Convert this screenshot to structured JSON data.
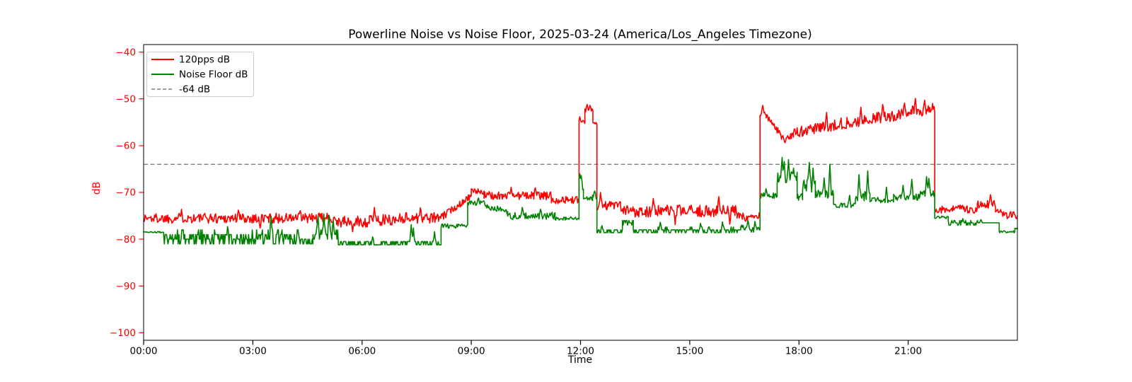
{
  "chart_data": {
    "type": "line",
    "title": "Powerline Noise vs Noise Floor, 2025-03-24 (America/Los_Angeles Timezone)",
    "xlabel": "Time",
    "ylabel": "dB",
    "grid": false,
    "background": "#ffffff",
    "x_axis": {
      "range_hours": [
        0,
        24
      ],
      "tick_hours": [
        0,
        3,
        6,
        9,
        12,
        15,
        18,
        21
      ],
      "tick_labels": [
        "00:00",
        "03:00",
        "06:00",
        "09:00",
        "12:00",
        "15:00",
        "18:00",
        "21:00"
      ],
      "tick_color": "#000000"
    },
    "y_axis": {
      "range": [
        -101.6,
        -38.4
      ],
      "tick_values": [
        -40,
        -50,
        -60,
        -70,
        -80,
        -90,
        -100
      ],
      "tick_labels": [
        "−40",
        "−50",
        "−60",
        "−70",
        "−80",
        "−90",
        "−100"
      ],
      "tick_color": "#ff0000"
    },
    "threshold": {
      "label": "-64 dB",
      "value": -64,
      "color": "#7f7f7f",
      "style": "dashed"
    },
    "legend": {
      "position": "upper-left",
      "entries": [
        {
          "label": "120pps dB",
          "color": "#ff0000",
          "style": "solid"
        },
        {
          "label": "Noise Floor dB",
          "color": "#008000",
          "style": "solid"
        },
        {
          "label": "-64 dB",
          "color": "#7f7f7f",
          "style": "dashed"
        }
      ]
    },
    "series": [
      {
        "name": "120pps dB",
        "color": "#ff0000",
        "sample_minutes": 1.2,
        "segments": [
          {
            "t0": 0,
            "t1": 5.3,
            "v0": -75.5,
            "n": 1.1,
            "spikes": [
              [
                1.05,
                -73.6
              ],
              [
                2.6,
                -73.8
              ],
              [
                3.2,
                -77.6
              ],
              [
                4.3,
                -73.9
              ]
            ]
          },
          {
            "t0": 5.3,
            "t1": 6.2,
            "v0": -76.3,
            "n": 1.2,
            "spikes": [
              [
                5.75,
                -78.4
              ]
            ]
          },
          {
            "t0": 6.2,
            "t1": 7.0,
            "v0": -75.9,
            "n": 1.2,
            "spikes": [
              [
                6.35,
                -73.2
              ]
            ]
          },
          {
            "t0": 7.0,
            "t1": 8.1,
            "v0": -75.4,
            "n": 1.2,
            "spikes": [
              [
                7.6,
                -73.3
              ]
            ]
          },
          {
            "t0": 8.1,
            "t1": 9.0,
            "v0": -75.8,
            "v1": -70.6,
            "n": 0.8
          },
          {
            "t0": 9.0,
            "t1": 9.35,
            "v0": -69.8,
            "n": 0.6
          },
          {
            "t0": 9.35,
            "t1": 11.2,
            "v0": -70.7,
            "n": 0.9,
            "spikes": [
              [
                10.1,
                -68.9
              ],
              [
                10.75,
                -69.0
              ]
            ]
          },
          {
            "t0": 11.2,
            "t1": 11.96,
            "v0": -71.6,
            "n": 0.8
          },
          {
            "t0": 11.96,
            "t1": 12.12,
            "v0": -55.0,
            "n": 0.4,
            "spikes": [
              [
                11.99,
                -53.8
              ]
            ]
          },
          {
            "t0": 12.12,
            "t1": 12.34,
            "v0": -52.3,
            "n": 0.5,
            "spikes": [
              [
                12.18,
                -51.2
              ],
              [
                12.27,
                -51.4
              ]
            ]
          },
          {
            "t0": 12.34,
            "t1": 12.45,
            "v0": -55.2,
            "n": 0.3
          },
          {
            "t0": 12.45,
            "t1": 13.1,
            "v0": -72.8,
            "n": 1.0,
            "spikes": [
              [
                12.55,
                -70.0
              ]
            ]
          },
          {
            "t0": 13.1,
            "t1": 16.3,
            "v0": -74.0,
            "n": 1.3,
            "spikes": [
              [
                14.0,
                -71.3
              ],
              [
                14.6,
                -76.9
              ],
              [
                15.8,
                -70.9
              ],
              [
                16.1,
                -76.8
              ]
            ]
          },
          {
            "t0": 16.3,
            "t1": 16.93,
            "v0": -75.2,
            "n": 1.0
          },
          {
            "t0": 16.93,
            "t1": 17.1,
            "v0": -53.2,
            "n": 0.5,
            "spikes": [
              [
                17.0,
                -51.4
              ]
            ]
          },
          {
            "t0": 17.1,
            "t1": 17.5,
            "v0": -53.8,
            "v1": -57.6,
            "n": 0.7
          },
          {
            "t0": 17.5,
            "t1": 17.85,
            "v0": -58.0,
            "n": 0.7,
            "spikes": [
              [
                17.62,
                -59.4
              ]
            ]
          },
          {
            "t0": 17.85,
            "t1": 19.0,
            "v0": -57.2,
            "v1": -55.6,
            "n": 1.2,
            "spikes": [
              [
                18.75,
                -52.9
              ]
            ]
          },
          {
            "t0": 19.0,
            "t1": 20.0,
            "v0": -55.4,
            "v1": -54.6,
            "n": 1.2,
            "spikes": [
              [
                19.7,
                -51.8
              ]
            ]
          },
          {
            "t0": 20.0,
            "t1": 21.0,
            "v0": -54.2,
            "v1": -53.2,
            "n": 1.2,
            "spikes": [
              [
                20.3,
                -51.2
              ],
              [
                20.9,
                -50.9
              ]
            ]
          },
          {
            "t0": 21.0,
            "t1": 21.73,
            "v0": -52.6,
            "n": 1.1,
            "spikes": [
              [
                21.2,
                -49.9
              ],
              [
                21.45,
                -50.3
              ],
              [
                21.68,
                -51.0
              ]
            ]
          },
          {
            "t0": 21.73,
            "t1": 22.9,
            "v0": -73.6,
            "n": 0.9
          },
          {
            "t0": 22.9,
            "t1": 23.4,
            "v0": -72.6,
            "n": 0.9,
            "spikes": [
              [
                23.25,
                -70.5
              ]
            ]
          },
          {
            "t0": 23.4,
            "t1": 24,
            "v0": -74.3,
            "v1": -75.2,
            "n": 0.9
          }
        ]
      },
      {
        "name": "Noise Floor dB",
        "color": "#008000",
        "sample_minutes": 1.2,
        "segments": [
          {
            "t0": 0,
            "t1": 0.55,
            "v0": -78.5,
            "n": 0.15
          },
          {
            "t0": 0.55,
            "t1": 4.3,
            "v0": -79.7,
            "n": 1.6,
            "q": 1,
            "spikes": [
              [
                2.3,
                -77.3
              ],
              [
                3.5,
                -75.1
              ]
            ]
          },
          {
            "t0": 4.3,
            "t1": 4.65,
            "v0": -80.6,
            "n": 0.5,
            "q": 1
          },
          {
            "t0": 4.65,
            "t1": 5.35,
            "v0": -79.2,
            "n": 1.6,
            "q": 1,
            "spikes": [
              [
                4.8,
                -75.1
              ],
              [
                4.95,
                -74.6
              ],
              [
                5.1,
                -74.9
              ],
              [
                5.22,
                -76.1
              ]
            ]
          },
          {
            "t0": 5.35,
            "t1": 8.17,
            "v0": -80.9,
            "n": 0.35,
            "q": 0.7,
            "spikes": [
              [
                6.3,
                -79.5
              ],
              [
                7.35,
                -76.9
              ],
              [
                7.42,
                -77.6
              ],
              [
                8.0,
                -78.4
              ]
            ]
          },
          {
            "t0": 8.17,
            "t1": 8.9,
            "v0": -77.2,
            "n": 0.5
          },
          {
            "t0": 8.9,
            "t1": 9.4,
            "v0": -72.3,
            "n": 0.6,
            "spikes": [
              [
                9.2,
                -71.2
              ]
            ]
          },
          {
            "t0": 9.4,
            "t1": 10.0,
            "v0": -72.8,
            "v1": -74.2,
            "n": 0.7
          },
          {
            "t0": 10.0,
            "t1": 11.3,
            "v0": -75.0,
            "n": 0.8,
            "spikes": [
              [
                10.4,
                -73.2
              ],
              [
                10.9,
                -73.6
              ]
            ]
          },
          {
            "t0": 11.3,
            "t1": 11.96,
            "v0": -75.6,
            "n": 0.35
          },
          {
            "t0": 11.96,
            "t1": 12.08,
            "v0": -69.0,
            "n": 0.5,
            "spikes": [
              [
                11.99,
                -66.0
              ],
              [
                12.02,
                -66.4
              ]
            ]
          },
          {
            "t0": 12.08,
            "t1": 12.33,
            "v0": -71.4,
            "n": 0.5
          },
          {
            "t0": 12.33,
            "t1": 12.45,
            "v0": -71.0,
            "n": 0.5,
            "spikes": [
              [
                12.38,
                -69.7
              ]
            ]
          },
          {
            "t0": 12.45,
            "t1": 13.15,
            "v0": -78.4,
            "n": 0.4,
            "q": 0.6,
            "spikes": [
              [
                12.6,
                -77.1
              ]
            ]
          },
          {
            "t0": 13.15,
            "t1": 13.45,
            "v0": -76.4,
            "n": 0.5,
            "q": 0.5
          },
          {
            "t0": 13.45,
            "t1": 16.4,
            "v0": -78.1,
            "n": 0.5,
            "q": 0.6,
            "spikes": [
              [
                14.2,
                -76.4
              ],
              [
                15.3,
                -76.6
              ],
              [
                15.9,
                -76.3
              ]
            ]
          },
          {
            "t0": 16.4,
            "t1": 16.93,
            "v0": -77.8,
            "n": 0.6,
            "q": 0.5,
            "spikes": [
              [
                16.6,
                -76.0
              ],
              [
                16.8,
                -76.2
              ]
            ]
          },
          {
            "t0": 16.93,
            "t1": 17.4,
            "v0": -70.7,
            "n": 0.6,
            "spikes": [
              [
                17.1,
                -69.2
              ]
            ]
          },
          {
            "t0": 17.4,
            "t1": 17.95,
            "v0": -66.9,
            "n": 1.6,
            "spikes": [
              [
                17.53,
                -62.5
              ],
              [
                17.6,
                -63.4
              ],
              [
                17.72,
                -63.0
              ],
              [
                17.85,
                -64.8
              ]
            ]
          },
          {
            "t0": 17.95,
            "t1": 18.1,
            "v0": -71.0,
            "n": 1.0
          },
          {
            "t0": 18.1,
            "t1": 18.45,
            "v0": -68.6,
            "n": 1.8,
            "spikes": [
              [
                18.29,
                -63.6
              ],
              [
                18.38,
                -64.8
              ]
            ]
          },
          {
            "t0": 18.45,
            "t1": 18.95,
            "v0": -70.5,
            "n": 1.0,
            "spikes": [
              [
                18.7,
                -66.9
              ],
              [
                18.86,
                -64.0
              ]
            ]
          },
          {
            "t0": 18.95,
            "t1": 19.55,
            "v0": -72.8,
            "n": 0.5,
            "spikes": [
              [
                19.4,
                -70.6
              ]
            ]
          },
          {
            "t0": 19.55,
            "t1": 19.95,
            "v0": -70.8,
            "n": 1.0,
            "spikes": [
              [
                19.65,
                -66.2
              ],
              [
                19.9,
                -65.4
              ]
            ]
          },
          {
            "t0": 19.95,
            "t1": 20.6,
            "v0": -71.6,
            "n": 0.6,
            "spikes": [
              [
                20.4,
                -68.9
              ]
            ]
          },
          {
            "t0": 20.6,
            "t1": 21.3,
            "v0": -71.0,
            "n": 0.7,
            "spikes": [
              [
                20.85,
                -68.5
              ],
              [
                21.1,
                -67.2
              ]
            ]
          },
          {
            "t0": 21.3,
            "t1": 21.73,
            "v0": -70.4,
            "n": 0.8,
            "spikes": [
              [
                21.5,
                -66.6
              ],
              [
                21.56,
                -67.0
              ]
            ]
          },
          {
            "t0": 21.73,
            "t1": 22.1,
            "v0": -75.3,
            "n": 0.3
          },
          {
            "t0": 22.1,
            "t1": 23.5,
            "v0": -76.5,
            "n": 0.35,
            "q": 0.5,
            "spikes": [
              [
                22.5,
                -75.6
              ],
              [
                23.0,
                -75.8
              ]
            ]
          },
          {
            "t0": 23.5,
            "t1": 23.93,
            "v0": -78.4,
            "n": 0.25
          },
          {
            "t0": 23.93,
            "t1": 24,
            "v0": -77.7,
            "n": 0.2
          }
        ]
      }
    ]
  }
}
